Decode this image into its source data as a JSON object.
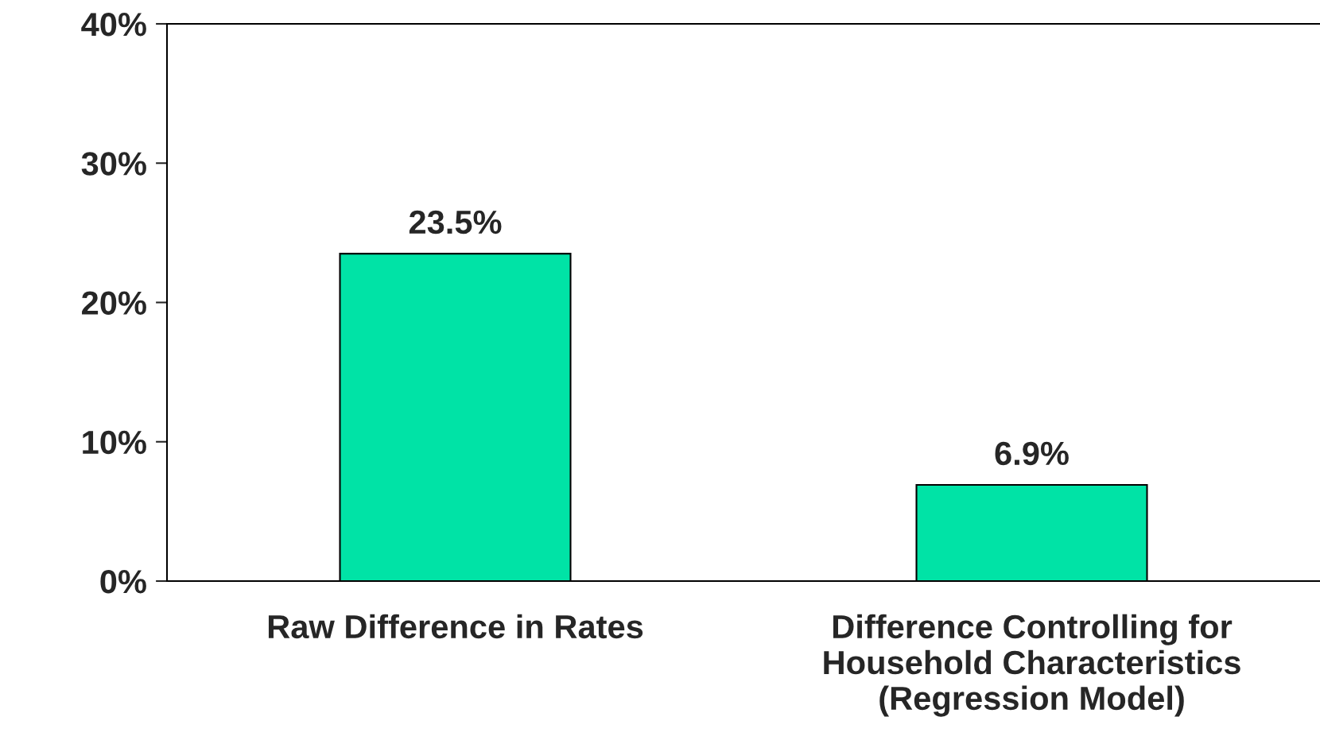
{
  "chart_data": {
    "type": "bar",
    "categories": [
      "Raw Difference in Rates",
      "Difference Controlling for\nHousehold Characteristics\n(Regression Model)"
    ],
    "values": [
      23.5,
      6.9
    ],
    "value_labels": [
      "23.5%",
      "6.9%"
    ],
    "color": "#00e3a6",
    "ylim": [
      0,
      40
    ],
    "yticks": [
      {
        "value": 0,
        "label": "0%"
      },
      {
        "value": 10,
        "label": "10%"
      },
      {
        "value": 20,
        "label": "20%"
      },
      {
        "value": 30,
        "label": "30%"
      },
      {
        "value": 40,
        "label": "40%"
      }
    ],
    "grid": false,
    "legend": false
  }
}
